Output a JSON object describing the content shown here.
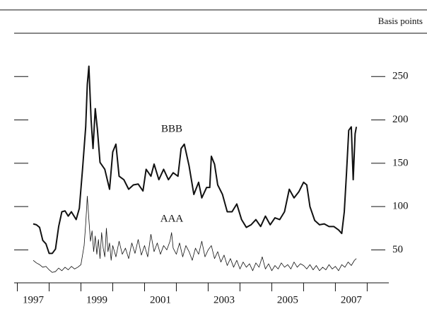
{
  "chart_data": {
    "type": "line",
    "y_label": "Basis points",
    "annotations": [
      "BBB",
      "AAA"
    ],
    "xlim": [
      1996.9,
      2008.68
    ],
    "ylim": [
      12,
      300
    ],
    "yticks": [
      50,
      100,
      150,
      200,
      250
    ],
    "xticks": [
      {
        "value": 1997.5,
        "label": "1997"
      },
      {
        "value": 1999.5,
        "label": "1999"
      },
      {
        "value": 2001.5,
        "label": "2001"
      },
      {
        "value": 2003.5,
        "label": "2003"
      },
      {
        "value": 2005.5,
        "label": "2005"
      },
      {
        "value": 2007.5,
        "label": "2007"
      }
    ],
    "xminorticks": [
      1997,
      1998,
      1999,
      2000,
      2001,
      2002,
      2003,
      2004,
      2005,
      2006,
      2007,
      2008
    ],
    "series": [
      {
        "name": "BBB",
        "color": "#111111",
        "x": [
          1997.5,
          1997.6,
          1997.7,
          1997.8,
          1997.9,
          1998.0,
          1998.1,
          1998.2,
          1998.3,
          1998.4,
          1998.5,
          1998.6,
          1998.7,
          1998.85,
          1998.95,
          1999.05,
          1999.15,
          1999.2,
          1999.25,
          1999.32,
          1999.38,
          1999.45,
          1999.52,
          1999.6,
          1999.75,
          1999.9,
          2000.0,
          2000.1,
          2000.2,
          2000.35,
          2000.5,
          2000.65,
          2000.8,
          2000.95,
          2001.05,
          2001.2,
          2001.3,
          2001.45,
          2001.6,
          2001.75,
          2001.9,
          2002.05,
          2002.15,
          2002.25,
          2002.4,
          2002.55,
          2002.7,
          2002.8,
          2002.95,
          2003.05,
          2003.1,
          2003.2,
          2003.3,
          2003.45,
          2003.6,
          2003.75,
          2003.9,
          2004.05,
          2004.2,
          2004.35,
          2004.5,
          2004.65,
          2004.8,
          2004.95,
          2005.1,
          2005.25,
          2005.4,
          2005.55,
          2005.7,
          2005.85,
          2006.0,
          2006.1,
          2006.2,
          2006.35,
          2006.5,
          2006.65,
          2006.8,
          2006.95,
          2007.1,
          2007.2,
          2007.28,
          2007.35,
          2007.42,
          2007.5,
          2007.56,
          2007.62,
          2007.66
        ],
        "values": [
          80,
          79,
          76,
          61,
          57,
          46,
          46,
          51,
          77,
          94,
          95,
          89,
          94,
          85,
          98,
          143,
          192,
          241,
          262,
          200,
          167,
          213,
          188,
          151,
          143,
          120,
          163,
          172,
          135,
          131,
          120,
          125,
          126,
          118,
          143,
          135,
          149,
          131,
          143,
          131,
          139,
          135,
          167,
          172,
          147,
          114,
          128,
          110,
          122,
          122,
          158,
          149,
          125,
          114,
          94,
          94,
          103,
          85,
          76,
          79,
          85,
          77,
          89,
          79,
          87,
          85,
          94,
          120,
          110,
          117,
          128,
          125,
          100,
          84,
          79,
          80,
          77,
          77,
          73,
          69,
          94,
          139,
          188,
          192,
          131,
          184,
          192
        ]
      },
      {
        "name": "AAA",
        "color": "#111111",
        "x": [
          1997.5,
          1997.6,
          1997.7,
          1997.8,
          1997.9,
          1998.0,
          1998.1,
          1998.2,
          1998.3,
          1998.4,
          1998.5,
          1998.6,
          1998.7,
          1998.8,
          1998.9,
          1999.0,
          1999.1,
          1999.15,
          1999.2,
          1999.25,
          1999.3,
          1999.35,
          1999.4,
          1999.45,
          1999.5,
          1999.55,
          1999.6,
          1999.65,
          1999.7,
          1999.75,
          1999.8,
          1999.85,
          1999.9,
          1999.95,
          2000.0,
          2000.1,
          2000.2,
          2000.3,
          2000.4,
          2000.5,
          2000.6,
          2000.7,
          2000.8,
          2000.9,
          2001.0,
          2001.1,
          2001.2,
          2001.3,
          2001.4,
          2001.5,
          2001.6,
          2001.7,
          2001.8,
          2001.85,
          2001.9,
          2002.0,
          2002.1,
          2002.2,
          2002.3,
          2002.4,
          2002.5,
          2002.6,
          2002.7,
          2002.8,
          2002.9,
          2003.0,
          2003.1,
          2003.2,
          2003.3,
          2003.4,
          2003.5,
          2003.6,
          2003.7,
          2003.8,
          2003.9,
          2004.0,
          2004.1,
          2004.2,
          2004.3,
          2004.4,
          2004.5,
          2004.6,
          2004.7,
          2004.8,
          2004.9,
          2005.0,
          2005.1,
          2005.2,
          2005.3,
          2005.4,
          2005.5,
          2005.6,
          2005.7,
          2005.8,
          2005.9,
          2006.0,
          2006.1,
          2006.2,
          2006.3,
          2006.4,
          2006.5,
          2006.6,
          2006.7,
          2006.8,
          2006.9,
          2007.0,
          2007.1,
          2007.2,
          2007.3,
          2007.4,
          2007.5,
          2007.6,
          2007.66
        ],
        "values": [
          38,
          35,
          33,
          30,
          31,
          27,
          24,
          25,
          29,
          26,
          30,
          27,
          31,
          28,
          30,
          33,
          55,
          80,
          112,
          85,
          60,
          72,
          48,
          66,
          45,
          62,
          40,
          70,
          52,
          42,
          75,
          48,
          58,
          38,
          55,
          42,
          60,
          45,
          52,
          40,
          58,
          46,
          62,
          44,
          55,
          42,
          68,
          48,
          58,
          45,
          55,
          50,
          60,
          70,
          52,
          45,
          58,
          42,
          55,
          48,
          38,
          52,
          45,
          60,
          42,
          50,
          55,
          40,
          48,
          36,
          44,
          32,
          40,
          30,
          38,
          28,
          36,
          30,
          34,
          26,
          35,
          30,
          42,
          28,
          34,
          26,
          32,
          28,
          35,
          30,
          33,
          28,
          36,
          30,
          34,
          32,
          28,
          33,
          27,
          32,
          26,
          30,
          27,
          33,
          28,
          31,
          26,
          33,
          30,
          36,
          32,
          38,
          40
        ]
      }
    ]
  }
}
